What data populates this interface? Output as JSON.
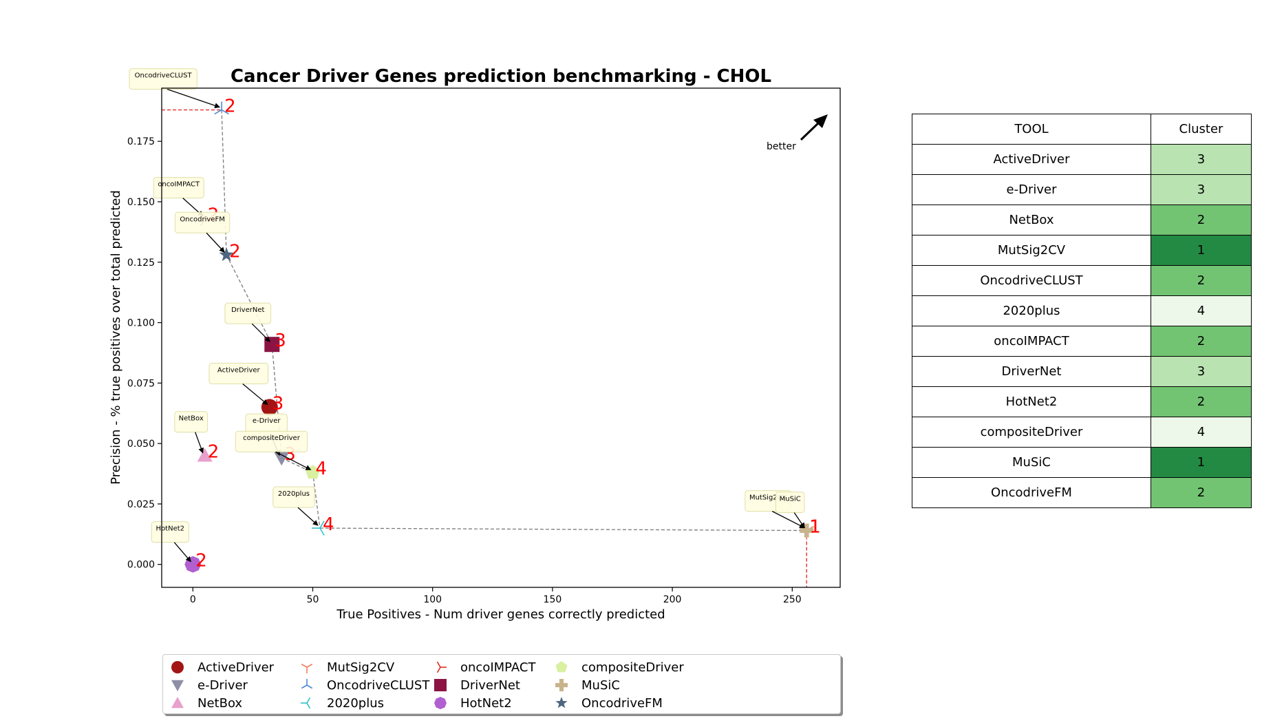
{
  "chart_data": {
    "type": "scatter",
    "title": "Cancer Driver Genes prediction benchmarking - CHOL",
    "xlabel": "True Positives - Num driver genes correctly predicted",
    "ylabel": "Precision - % true positives over total predicted",
    "xlim": [
      -13,
      270
    ],
    "ylim": [
      -0.0095,
      0.197
    ],
    "xticks": [
      0,
      50,
      100,
      150,
      200,
      250
    ],
    "yticks": [
      0.0,
      0.025,
      0.05,
      0.075,
      0.1,
      0.125,
      0.15,
      0.175
    ],
    "ytick_labels": [
      "0.000",
      "0.025",
      "0.050",
      "0.075",
      "0.100",
      "0.125",
      "0.150",
      "0.175"
    ],
    "annotation": "better",
    "points": [
      {
        "name": "ActiveDriver",
        "x": 32,
        "y": 0.065,
        "cluster": "3",
        "marker": "circle",
        "color": "#a31515"
      },
      {
        "name": "e-Driver",
        "x": 37,
        "y": 0.044,
        "cluster": "3",
        "marker": "triangle-down",
        "color": "#8e8ea6"
      },
      {
        "name": "NetBox",
        "x": 5,
        "y": 0.045,
        "cluster": "2",
        "marker": "triangle-up",
        "color": "#e8a0cc"
      },
      {
        "name": "MutSig2CV",
        "x": 256,
        "y": 0.014,
        "cluster": "1",
        "marker": "tri-down",
        "color": "#f08060"
      },
      {
        "name": "OncodriveCLUST",
        "x": 12,
        "y": 0.188,
        "cluster": "2",
        "marker": "tri-up",
        "color": "#4a8ad6"
      },
      {
        "name": "2020plus",
        "x": 53,
        "y": 0.015,
        "cluster": "4",
        "marker": "tri-left",
        "color": "#30c0c8"
      },
      {
        "name": "oncoIMPACT",
        "x": 5,
        "y": 0.143,
        "cluster": "2",
        "marker": "tri-right",
        "color": "#e03020"
      },
      {
        "name": "DriverNet",
        "x": 33,
        "y": 0.091,
        "cluster": "3",
        "marker": "square",
        "color": "#8b1445"
      },
      {
        "name": "HotNet2",
        "x": 0,
        "y": 0.0,
        "cluster": "2",
        "marker": "octagon",
        "color": "#b060d0"
      },
      {
        "name": "compositeDriver",
        "x": 50,
        "y": 0.038,
        "cluster": "4",
        "marker": "pentagon",
        "color": "#d8f0a0"
      },
      {
        "name": "MuSiC",
        "x": 256,
        "y": 0.014,
        "cluster": "1",
        "marker": "plus",
        "color": "#c8b48c"
      },
      {
        "name": "OncodriveFM",
        "x": 14,
        "y": 0.128,
        "cluster": "2",
        "marker": "star",
        "color": "#4e6682"
      }
    ],
    "pareto_front": [
      [
        12,
        0.188
      ],
      [
        14,
        0.128
      ],
      [
        33,
        0.091
      ],
      [
        37,
        0.044
      ],
      [
        50,
        0.038
      ],
      [
        53,
        0.015
      ],
      [
        256,
        0.014
      ]
    ]
  },
  "table": {
    "headers": [
      "TOOL",
      "Cluster"
    ],
    "rows": [
      {
        "tool": "ActiveDriver",
        "cluster": "3",
        "color": "#b9e3b1"
      },
      {
        "tool": "e-Driver",
        "cluster": "3",
        "color": "#b9e3b1"
      },
      {
        "tool": "NetBox",
        "cluster": "2",
        "color": "#72c472"
      },
      {
        "tool": "MutSig2CV",
        "cluster": "1",
        "color": "#238a44"
      },
      {
        "tool": "OncodriveCLUST",
        "cluster": "2",
        "color": "#72c472"
      },
      {
        "tool": "2020plus",
        "cluster": "4",
        "color": "#eef8ea"
      },
      {
        "tool": "oncoIMPACT",
        "cluster": "2",
        "color": "#72c472"
      },
      {
        "tool": "DriverNet",
        "cluster": "3",
        "color": "#b9e3b1"
      },
      {
        "tool": "HotNet2",
        "cluster": "2",
        "color": "#72c472"
      },
      {
        "tool": "compositeDriver",
        "cluster": "4",
        "color": "#eef8ea"
      },
      {
        "tool": "MuSiC",
        "cluster": "1",
        "color": "#238a44"
      },
      {
        "tool": "OncodriveFM",
        "cluster": "2",
        "color": "#72c472"
      }
    ]
  }
}
